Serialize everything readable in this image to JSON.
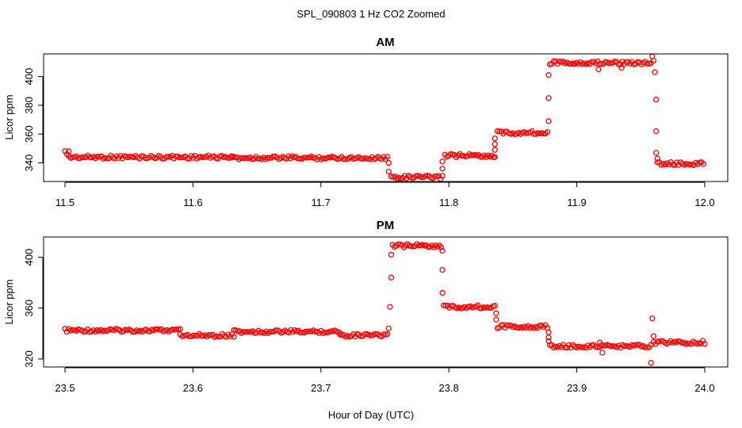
{
  "figure": {
    "title": "SPL_090803  1 Hz CO2 Zoomed",
    "xlabel": "Hour of Day (UTC)"
  },
  "colors": {
    "points": "#ff0000",
    "axes": "#000000",
    "background": "#ffffff"
  },
  "chart_data": [
    {
      "type": "scatter",
      "title": "AM",
      "xlabel": "",
      "ylabel": "Licor ppm",
      "xlim": [
        11.5,
        12.0
      ],
      "ylim": [
        322,
        417
      ],
      "xticks": [
        "11.5",
        "11.6",
        "11.7",
        "11.8",
        "11.9",
        "12.0"
      ],
      "xtick_values": [
        11.5,
        11.6,
        11.7,
        11.8,
        11.9,
        12.0
      ],
      "yticks": [
        "340",
        "360",
        "380",
        "400"
      ],
      "ytick_values": [
        340,
        360,
        380,
        400
      ],
      "grid": false,
      "marker": "open-circle",
      "segments": [
        {
          "x_start": 11.5,
          "x_end": 11.503,
          "y": 347
        },
        {
          "x_start": 11.503,
          "x_end": 11.63,
          "y": 344
        },
        {
          "x_start": 11.63,
          "x_end": 11.752,
          "y": 343.5
        },
        {
          "x_start": 11.755,
          "x_end": 11.795,
          "y": 330
        },
        {
          "x_start": 11.797,
          "x_end": 11.835,
          "y": 345
        },
        {
          "x_start": 11.838,
          "x_end": 11.877,
          "y": 361
        },
        {
          "x_start": 11.879,
          "x_end": 11.958,
          "y": 409.5
        },
        {
          "x_start": 11.963,
          "x_end": 11.999,
          "y": 339.5
        }
      ],
      "transition_points": [
        [
          11.753,
          340
        ],
        [
          11.753,
          334
        ],
        [
          11.795,
          341
        ],
        [
          11.795,
          336
        ],
        [
          11.836,
          344
        ],
        [
          11.836,
          349
        ],
        [
          11.836,
          353
        ],
        [
          11.836,
          357
        ],
        [
          11.878,
          369
        ],
        [
          11.878,
          385
        ],
        [
          11.878,
          401
        ],
        [
          11.917,
          405
        ],
        [
          11.935,
          406
        ],
        [
          11.959,
          414
        ],
        [
          11.96,
          411
        ],
        [
          11.961,
          403
        ],
        [
          11.962,
          384
        ],
        [
          11.962,
          362
        ],
        [
          11.962,
          347
        ],
        [
          11.963,
          343
        ]
      ]
    },
    {
      "type": "scatter",
      "title": "PM",
      "xlabel": "",
      "ylabel": "Licor ppm",
      "xlim": [
        23.5,
        24.0
      ],
      "ylim": [
        312,
        418
      ],
      "xticks": [
        "23.5",
        "23.6",
        "23.7",
        "23.8",
        "23.9",
        "24.0"
      ],
      "xtick_values": [
        23.5,
        23.6,
        23.7,
        23.8,
        23.9,
        24.0
      ],
      "yticks": [
        "320",
        "360",
        "400"
      ],
      "ytick_values": [
        320,
        360,
        400
      ],
      "grid": false,
      "marker": "open-circle",
      "segments": [
        {
          "x_start": 23.5,
          "x_end": 23.59,
          "y": 342.5
        },
        {
          "x_start": 23.59,
          "x_end": 23.632,
          "y": 338.5
        },
        {
          "x_start": 23.632,
          "x_end": 23.715,
          "y": 341.5
        },
        {
          "x_start": 23.715,
          "x_end": 23.752,
          "y": 338.5
        },
        {
          "x_start": 23.756,
          "x_end": 23.794,
          "y": 409
        },
        {
          "x_start": 23.796,
          "x_end": 23.836,
          "y": 361
        },
        {
          "x_start": 23.838,
          "x_end": 23.877,
          "y": 345.5
        },
        {
          "x_start": 23.879,
          "x_end": 23.958,
          "y": 330
        },
        {
          "x_start": 23.96,
          "x_end": 24.0,
          "y": 333
        }
      ],
      "transition_points": [
        [
          23.753,
          344
        ],
        [
          23.754,
          361
        ],
        [
          23.755,
          384
        ],
        [
          23.755,
          402
        ],
        [
          23.795,
          405
        ],
        [
          23.795,
          390
        ],
        [
          23.795,
          372
        ],
        [
          23.837,
          356
        ],
        [
          23.837,
          351
        ],
        [
          23.878,
          341
        ],
        [
          23.878,
          337
        ],
        [
          23.878,
          334
        ],
        [
          23.918,
          333
        ],
        [
          23.92,
          325
        ],
        [
          23.958,
          317
        ],
        [
          23.959,
          352
        ],
        [
          23.96,
          338
        ]
      ]
    }
  ]
}
